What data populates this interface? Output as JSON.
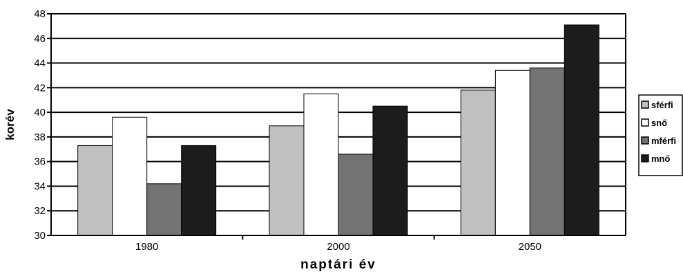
{
  "chart_data": {
    "type": "bar",
    "title": "",
    "xlabel": "naptári év",
    "ylabel": "korév",
    "categories": [
      "1980",
      "2000",
      "2050"
    ],
    "ylim": [
      30,
      48
    ],
    "yticks": [
      "30",
      "32",
      "34",
      "36",
      "38",
      "40",
      "42",
      "44",
      "46",
      "48"
    ],
    "grid": true,
    "legend_position": "right",
    "series": [
      {
        "name": "sférfi",
        "color": "#c0c0c0",
        "values": [
          37.3,
          38.9,
          41.8
        ]
      },
      {
        "name": "snő",
        "color": "#ffffff",
        "values": [
          39.6,
          41.5,
          43.4
        ]
      },
      {
        "name": "mférfi",
        "color": "#737373",
        "values": [
          34.2,
          36.6,
          43.6
        ]
      },
      {
        "name": "mnő",
        "color": "#1c1c1c",
        "values": [
          37.3,
          40.5,
          47.1
        ]
      }
    ]
  }
}
